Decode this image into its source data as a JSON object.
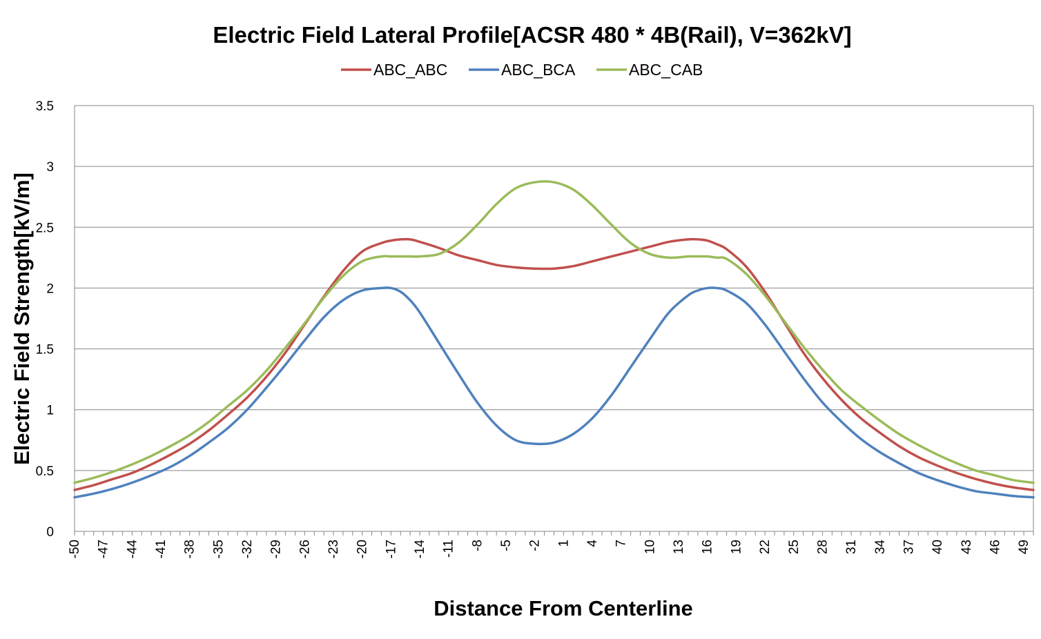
{
  "chart_data": {
    "type": "line",
    "title": "Electric Field Lateral Profile[ACSR 480 * 4B(Rail), V=362kV]",
    "xlabel": "Distance From Centerline",
    "ylabel": "Electric Field Strength[kV/m]",
    "ylim": [
      0,
      3.5
    ],
    "xlim": [
      -50,
      50
    ],
    "yticks": [
      "0",
      "0.5",
      "1",
      "1.5",
      "2",
      "2.5",
      "3",
      "3.5"
    ],
    "xticks": [
      "-50",
      "-47",
      "-44",
      "-41",
      "-38",
      "-35",
      "-32",
      "-29",
      "-26",
      "-23",
      "-20",
      "-17",
      "-14",
      "-11",
      "-8",
      "-5",
      "-2",
      "1",
      "4",
      "7",
      "10",
      "13",
      "16",
      "19",
      "22",
      "25",
      "28",
      "31",
      "34",
      "37",
      "40",
      "43",
      "46",
      "49"
    ],
    "grid": "horizontal",
    "legend": "top",
    "x": [
      -50,
      -48,
      -46,
      -44,
      -42,
      -40,
      -38,
      -36,
      -34,
      -32,
      -30,
      -28,
      -26,
      -24,
      -22,
      -20,
      -18,
      -17,
      -16,
      -15,
      -14,
      -12,
      -10,
      -8,
      -6,
      -4,
      -2,
      0,
      2,
      4,
      6,
      8,
      10,
      12,
      14,
      15,
      16,
      17,
      18,
      20,
      22,
      24,
      26,
      28,
      30,
      32,
      34,
      36,
      38,
      40,
      42,
      44,
      46,
      48,
      50
    ],
    "series": [
      {
        "name": "ABC_ABC",
        "color": "#c0504d",
        "values": [
          0.34,
          0.38,
          0.43,
          0.48,
          0.55,
          0.63,
          0.72,
          0.83,
          0.96,
          1.1,
          1.27,
          1.47,
          1.7,
          1.93,
          2.14,
          2.3,
          2.37,
          2.39,
          2.4,
          2.4,
          2.38,
          2.33,
          2.27,
          2.23,
          2.19,
          2.17,
          2.16,
          2.16,
          2.18,
          2.22,
          2.26,
          2.3,
          2.34,
          2.38,
          2.4,
          2.4,
          2.39,
          2.36,
          2.32,
          2.18,
          1.97,
          1.72,
          1.47,
          1.26,
          1.08,
          0.93,
          0.81,
          0.7,
          0.61,
          0.54,
          0.48,
          0.43,
          0.39,
          0.36,
          0.34
        ]
      },
      {
        "name": "ABC_BCA",
        "color": "#4f81bd",
        "values": [
          0.28,
          0.31,
          0.35,
          0.4,
          0.46,
          0.53,
          0.62,
          0.73,
          0.85,
          1.0,
          1.18,
          1.37,
          1.57,
          1.76,
          1.9,
          1.98,
          2.0,
          2.0,
          1.97,
          1.9,
          1.8,
          1.55,
          1.3,
          1.06,
          0.87,
          0.75,
          0.72,
          0.73,
          0.8,
          0.93,
          1.12,
          1.35,
          1.58,
          1.8,
          1.94,
          1.98,
          2.0,
          2.0,
          1.98,
          1.88,
          1.7,
          1.48,
          1.26,
          1.06,
          0.9,
          0.76,
          0.65,
          0.56,
          0.48,
          0.42,
          0.37,
          0.33,
          0.31,
          0.29,
          0.28
        ]
      },
      {
        "name": "ABC_CAB",
        "color": "#9bbb59",
        "values": [
          0.4,
          0.44,
          0.49,
          0.55,
          0.62,
          0.7,
          0.79,
          0.9,
          1.03,
          1.16,
          1.32,
          1.51,
          1.71,
          1.92,
          2.1,
          2.22,
          2.26,
          2.26,
          2.26,
          2.26,
          2.26,
          2.28,
          2.37,
          2.52,
          2.69,
          2.82,
          2.87,
          2.87,
          2.81,
          2.68,
          2.52,
          2.37,
          2.28,
          2.25,
          2.26,
          2.26,
          2.26,
          2.25,
          2.24,
          2.12,
          1.94,
          1.73,
          1.52,
          1.33,
          1.16,
          1.03,
          0.91,
          0.8,
          0.71,
          0.63,
          0.56,
          0.5,
          0.46,
          0.42,
          0.4
        ]
      }
    ]
  }
}
